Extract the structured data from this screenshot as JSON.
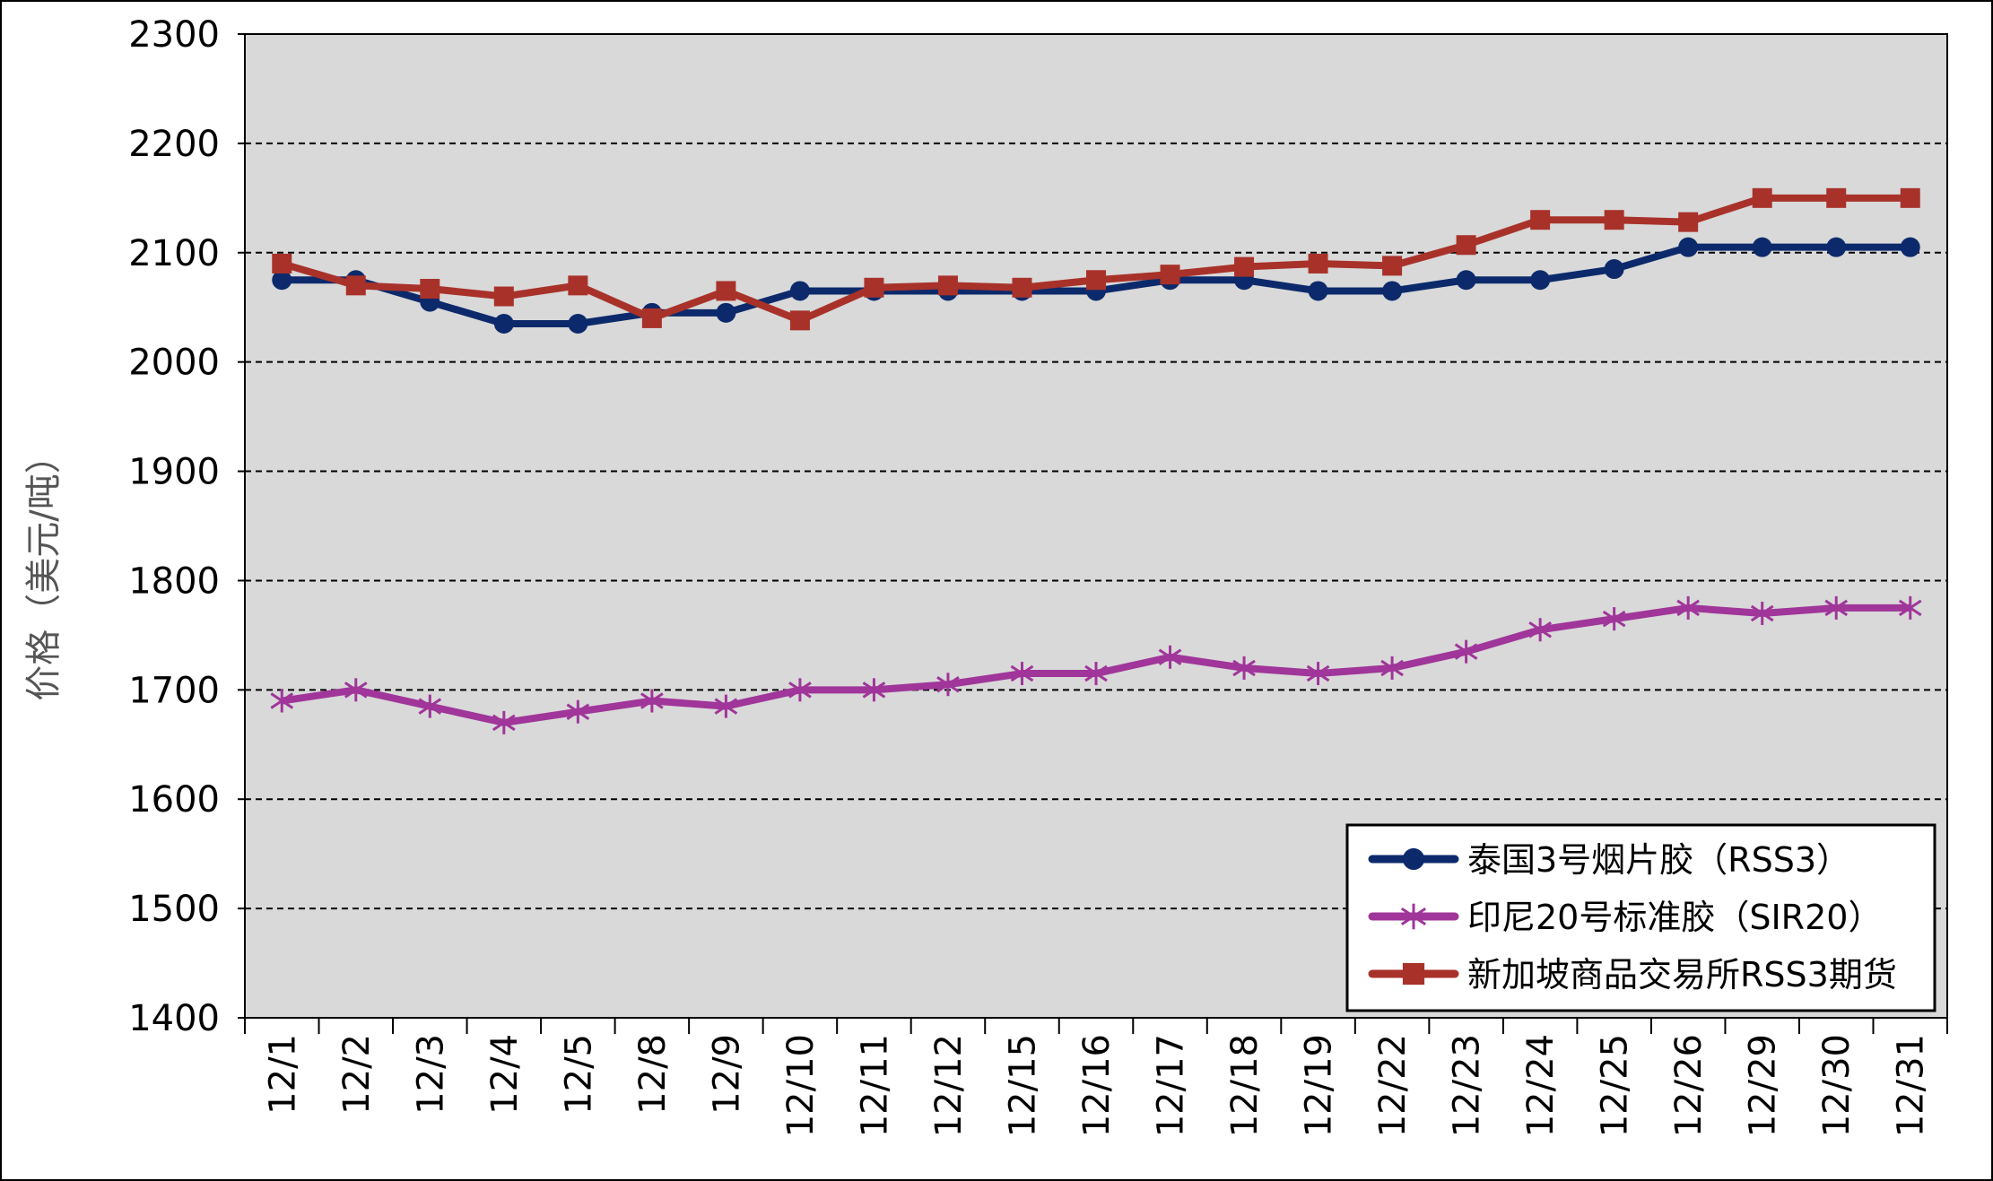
{
  "chart_data": {
    "type": "line",
    "title": "",
    "xlabel": "",
    "ylabel": "价格（美元/吨）",
    "ylim": [
      1400,
      2300
    ],
    "yticks": [
      1400,
      1500,
      1600,
      1700,
      1800,
      1900,
      2000,
      2100,
      2200,
      2300
    ],
    "grid": true,
    "legend_position": "bottom-right",
    "categories": [
      "12/1",
      "12/2",
      "12/3",
      "12/4",
      "12/5",
      "12/8",
      "12/9",
      "12/10",
      "12/11",
      "12/12",
      "12/15",
      "12/16",
      "12/17",
      "12/18",
      "12/19",
      "12/22",
      "12/23",
      "12/24",
      "12/25",
      "12/26",
      "12/29",
      "12/30",
      "12/31"
    ],
    "series": [
      {
        "name": "泰国3号烟片胶（RSS3）",
        "color": "#0c2a6b",
        "marker": "circle",
        "values": [
          2075,
          2075,
          2055,
          2035,
          2035,
          2045,
          2045,
          2065,
          2065,
          2065,
          2065,
          2065,
          2075,
          2075,
          2065,
          2065,
          2075,
          2075,
          2085,
          2105,
          2105,
          2105,
          2105
        ]
      },
      {
        "name": "印尼20号标准胶（SIR20）",
        "color": "#a0359a",
        "marker": "star",
        "values": [
          1690,
          1700,
          1685,
          1670,
          1680,
          1690,
          1685,
          1700,
          1700,
          1705,
          1715,
          1715,
          1730,
          1720,
          1715,
          1720,
          1735,
          1755,
          1765,
          1775,
          1770,
          1775,
          1775
        ]
      },
      {
        "name": "新加坡商品交易所RSS3期货",
        "color": "#a8322a",
        "marker": "square",
        "values": [
          2090,
          2070,
          2067,
          2060,
          2070,
          2040,
          2065,
          2038,
          2068,
          2070,
          2068,
          2075,
          2080,
          2087,
          2090,
          2088,
          2107,
          2130,
          2130,
          2128,
          2150,
          2150,
          2150
        ]
      }
    ]
  }
}
